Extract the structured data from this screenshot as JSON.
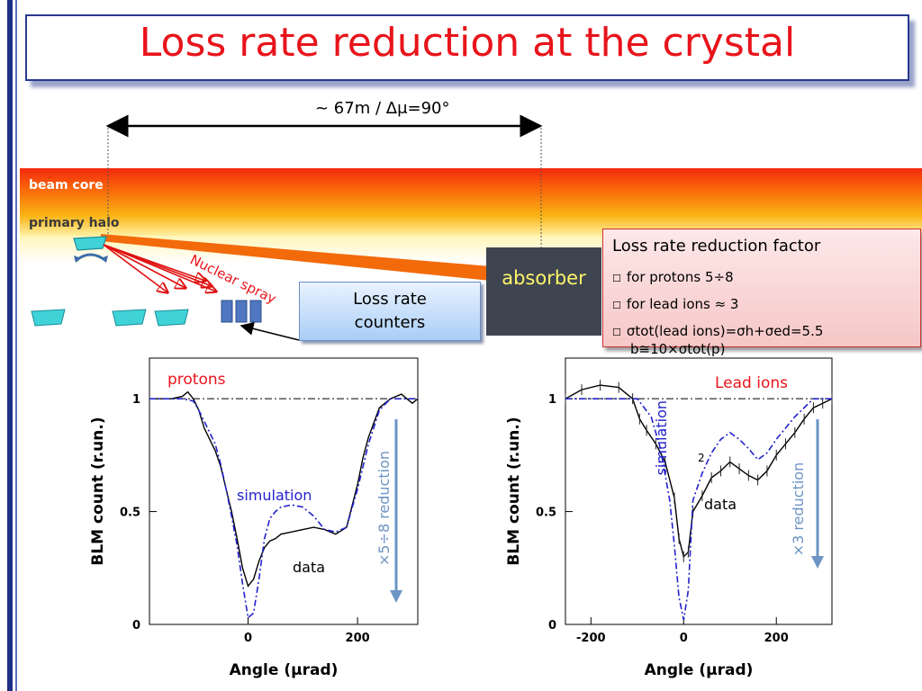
{
  "title": "Loss rate reduction at the crystal",
  "distance_label": "~ 67m / Δμ=90°",
  "beam": {
    "core_label": "beam core",
    "halo_label": "primary halo"
  },
  "nuclear_spray_label": "Nuclear spray",
  "absorber_label": "absorber",
  "counters": {
    "line1": "Loss rate",
    "line2": "counters"
  },
  "factor_box": {
    "heading": "Loss rate reduction factor",
    "protons": "for protons 5÷8",
    "lead_ions": "for lead ions ≈ 3",
    "sigma_line1": "σtot(lead ions)=σh+σed=5.5",
    "sigma_line2": "b≅10×σtot(p)"
  },
  "colors": {
    "title": "#e8141b",
    "simulation": "#2222cc",
    "data": "#000000",
    "arrow": "#6c94c4",
    "label_red": "#e8141b"
  },
  "chart_data": [
    {
      "type": "line",
      "title": "",
      "panel_label": "protons",
      "xlabel": "Angle (μrad)",
      "ylabel": "BLM count (r.un.)",
      "xlim": [
        -180,
        310
      ],
      "ylim": [
        0,
        1.18
      ],
      "x_ticks": [
        0,
        200
      ],
      "y_ticks": [
        0,
        0.5,
        1
      ],
      "reference_line": 1,
      "annotations": [
        "simulation",
        "data",
        "×5÷8 reduction"
      ],
      "series": [
        {
          "name": "simulation",
          "x": [
            -180,
            -120,
            -100,
            -90,
            -80,
            -70,
            -60,
            -50,
            -40,
            -30,
            -20,
            -10,
            0,
            10,
            20,
            30,
            40,
            50,
            60,
            80,
            100,
            120,
            140,
            160,
            180,
            200,
            220,
            240,
            260,
            280,
            300,
            310
          ],
          "y": [
            1.0,
            1.0,
            0.99,
            0.95,
            0.9,
            0.85,
            0.8,
            0.71,
            0.6,
            0.48,
            0.35,
            0.18,
            0.03,
            0.05,
            0.2,
            0.38,
            0.47,
            0.5,
            0.52,
            0.53,
            0.52,
            0.48,
            0.42,
            0.41,
            0.43,
            0.6,
            0.8,
            0.95,
            1.0,
            1.0,
            1.0,
            1.0
          ]
        },
        {
          "name": "data",
          "x": [
            -180,
            -140,
            -120,
            -110,
            -100,
            -90,
            -80,
            -70,
            -60,
            -50,
            -40,
            -30,
            -20,
            -10,
            0,
            10,
            20,
            30,
            40,
            50,
            60,
            80,
            100,
            120,
            140,
            160,
            180,
            200,
            210,
            220,
            240,
            260,
            280,
            300,
            310
          ],
          "y": [
            1.0,
            1.0,
            1.01,
            1.03,
            1.0,
            0.95,
            0.87,
            0.82,
            0.77,
            0.7,
            0.6,
            0.5,
            0.38,
            0.25,
            0.17,
            0.2,
            0.28,
            0.34,
            0.37,
            0.38,
            0.4,
            0.41,
            0.42,
            0.43,
            0.42,
            0.4,
            0.43,
            0.62,
            0.74,
            0.83,
            0.96,
            1.0,
            1.02,
            0.98,
            1.0
          ]
        }
      ]
    },
    {
      "type": "line",
      "title": "",
      "panel_label": "Lead ions",
      "xlabel": "Angle (μrad)",
      "ylabel": "BLM count (r.un.)",
      "xlim": [
        -255,
        320
      ],
      "ylim": [
        0,
        1.18
      ],
      "x_ticks": [
        -200,
        0,
        200
      ],
      "y_ticks": [
        0,
        0.5,
        1
      ],
      "reference_line": 1,
      "annotations": [
        "simulation",
        "data",
        "×3 reduction",
        "2"
      ],
      "series": [
        {
          "name": "simulation",
          "x": [
            -255,
            -200,
            -150,
            -100,
            -70,
            -50,
            -30,
            -20,
            -10,
            0,
            10,
            20,
            40,
            60,
            80,
            100,
            120,
            140,
            160,
            180,
            200,
            240,
            280,
            320
          ],
          "y": [
            1.0,
            1.0,
            1.0,
            1.0,
            0.92,
            0.78,
            0.55,
            0.35,
            0.12,
            0.02,
            0.15,
            0.55,
            0.67,
            0.76,
            0.82,
            0.85,
            0.82,
            0.78,
            0.73,
            0.76,
            0.82,
            0.92,
            1.0,
            1.0
          ]
        },
        {
          "name": "data",
          "x": [
            -255,
            -220,
            -180,
            -140,
            -110,
            -95,
            -80,
            -60,
            -40,
            -20,
            -10,
            0,
            10,
            20,
            40,
            60,
            80,
            100,
            120,
            140,
            160,
            180,
            200,
            220,
            240,
            260,
            280,
            300,
            320
          ],
          "y": [
            1.0,
            1.04,
            1.06,
            1.05,
            1.0,
            0.91,
            0.86,
            0.8,
            0.72,
            0.56,
            0.38,
            0.3,
            0.32,
            0.5,
            0.57,
            0.65,
            0.68,
            0.72,
            0.69,
            0.66,
            0.64,
            0.68,
            0.75,
            0.8,
            0.85,
            0.91,
            0.96,
            0.98,
            1.0
          ]
        }
      ]
    }
  ]
}
